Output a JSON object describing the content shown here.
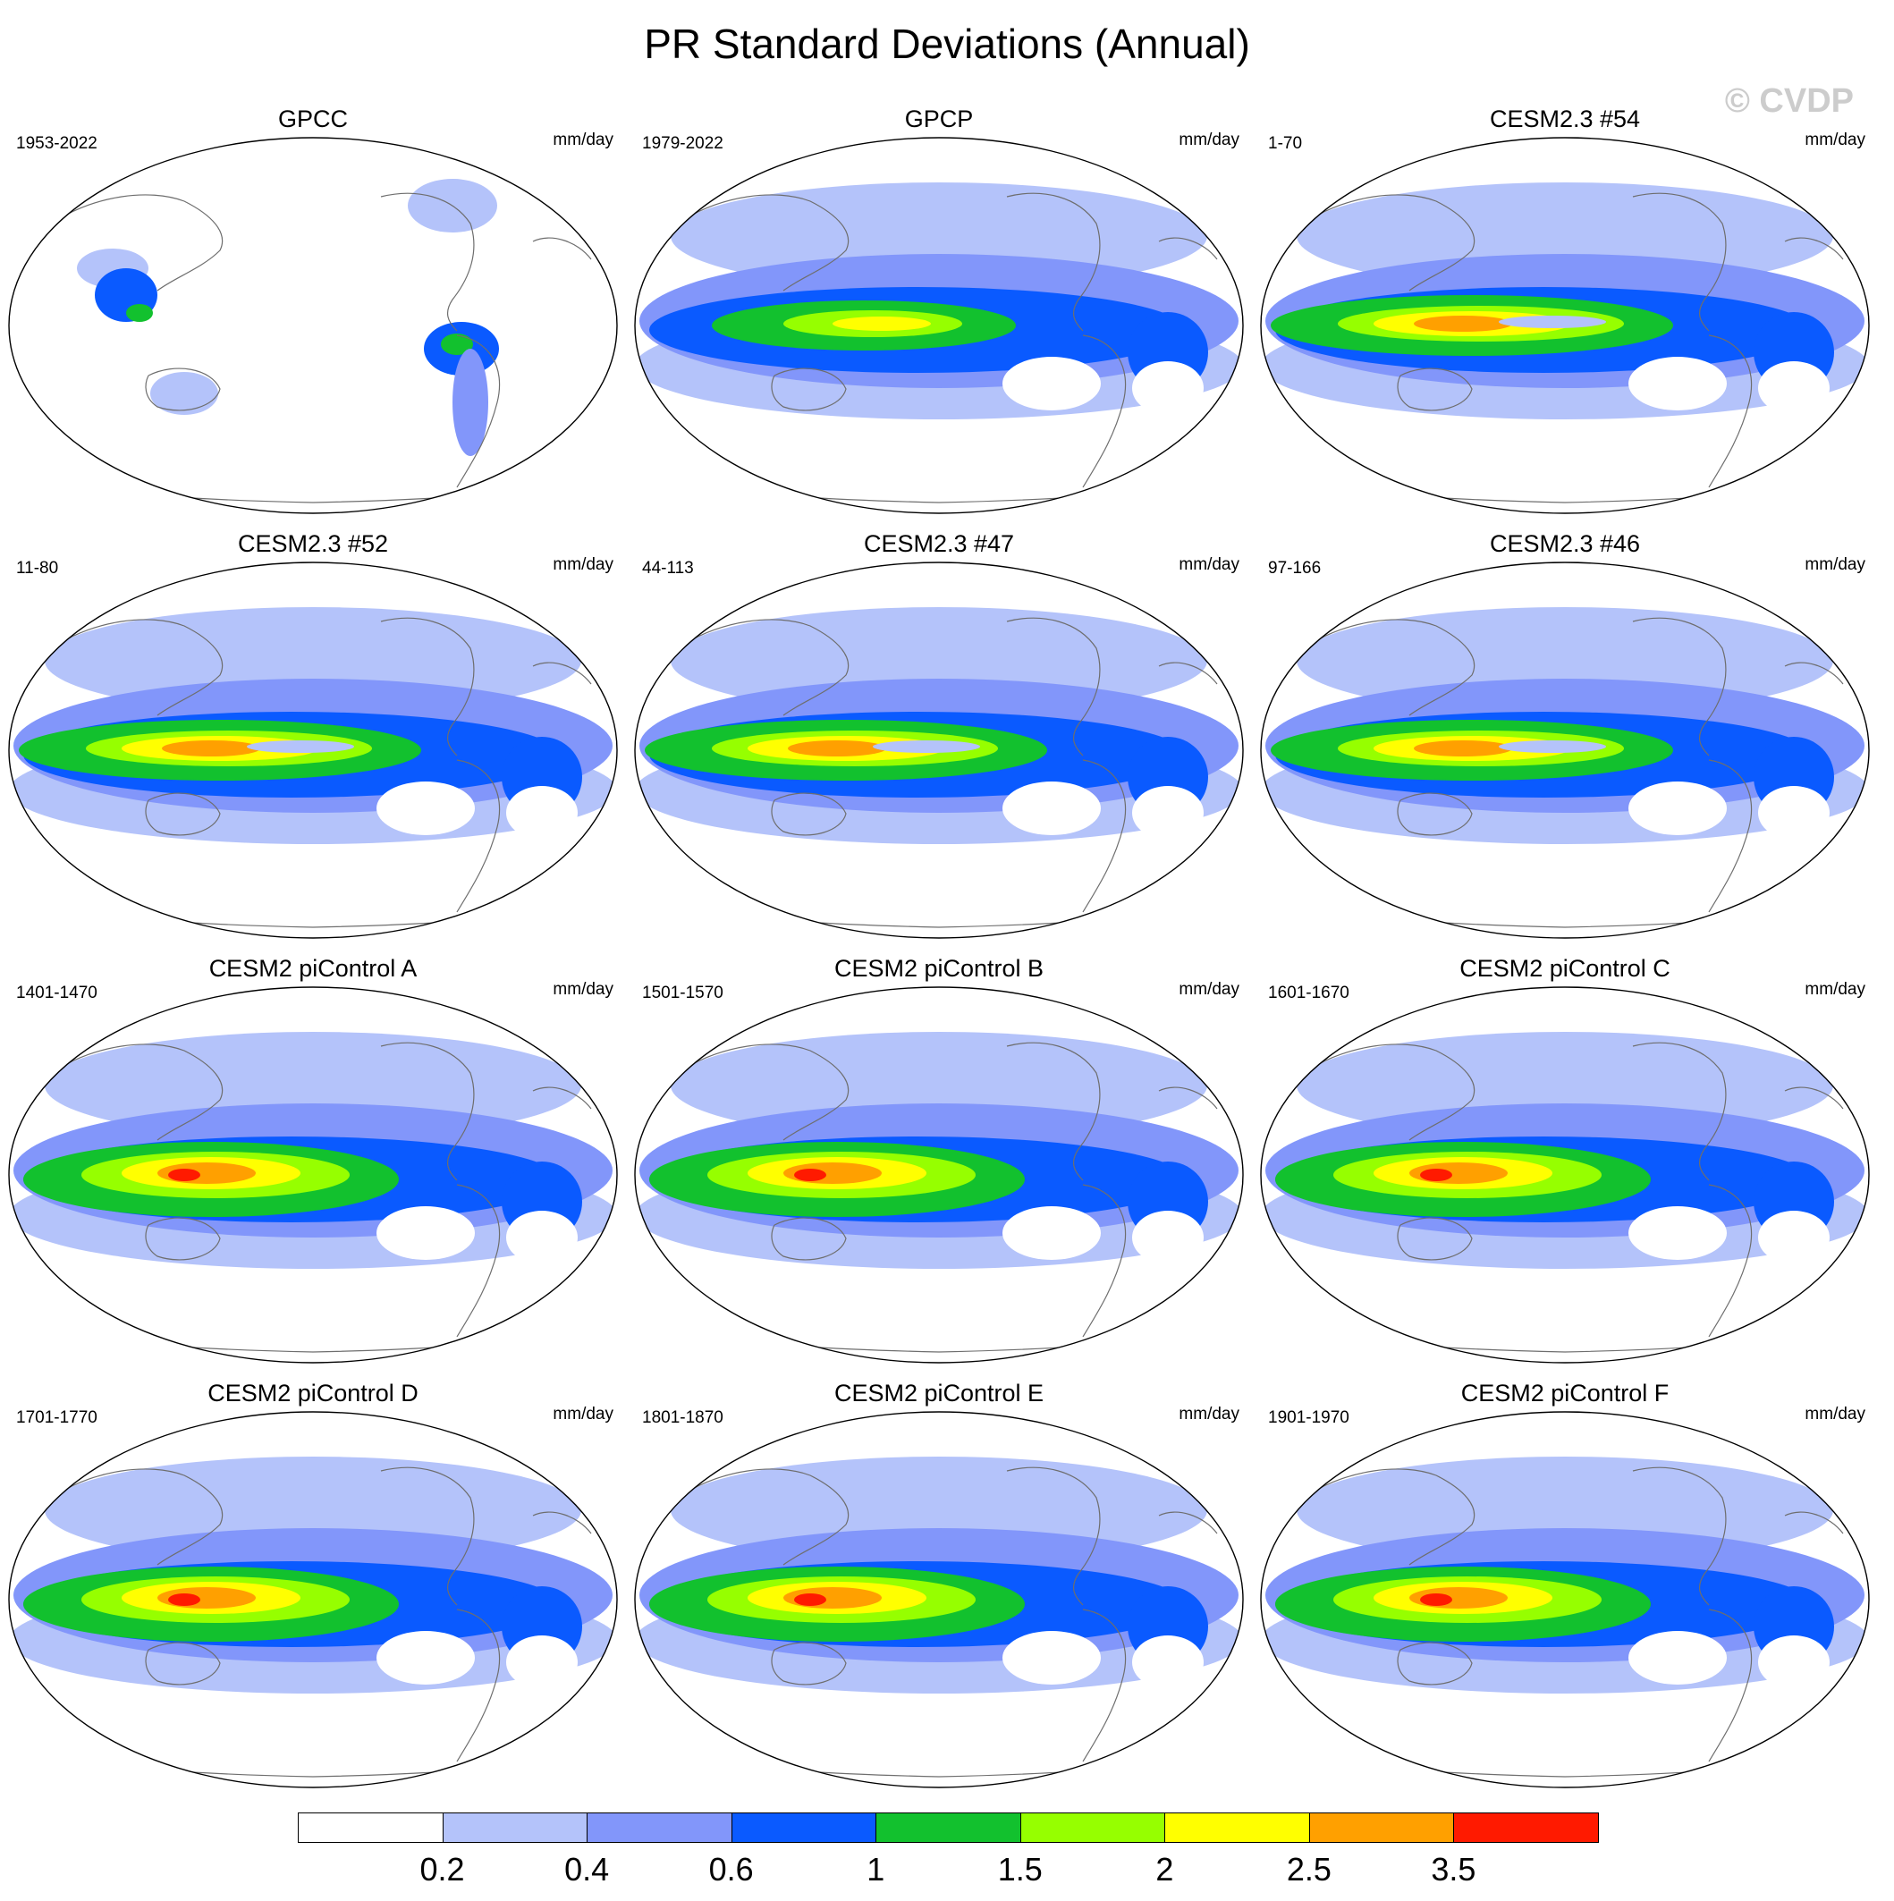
{
  "title": "PR Standard Deviations (Annual)",
  "watermark": "© CVDP",
  "units": "mm/day",
  "panels": [
    {
      "title": "GPCC",
      "period": "1953-2022",
      "kind": "obs_land"
    },
    {
      "title": "GPCP",
      "period": "1979-2022",
      "kind": "obs"
    },
    {
      "title": "CESM2.3 #54",
      "period": "1-70",
      "kind": "cesm23"
    },
    {
      "title": "CESM2.3 #52",
      "period": "11-80",
      "kind": "cesm23"
    },
    {
      "title": "CESM2.3 #47",
      "period": "44-113",
      "kind": "cesm23"
    },
    {
      "title": "CESM2.3 #46",
      "period": "97-166",
      "kind": "cesm23"
    },
    {
      "title": "CESM2 piControl A",
      "period": "1401-1470",
      "kind": "cesm2"
    },
    {
      "title": "CESM2 piControl B",
      "period": "1501-1570",
      "kind": "cesm2"
    },
    {
      "title": "CESM2 piControl C",
      "period": "1601-1670",
      "kind": "cesm2"
    },
    {
      "title": "CESM2 piControl D",
      "period": "1701-1770",
      "kind": "cesm2"
    },
    {
      "title": "CESM2 piControl E",
      "period": "1801-1870",
      "kind": "cesm2"
    },
    {
      "title": "CESM2 piControl F",
      "period": "1901-1970",
      "kind": "cesm2"
    }
  ],
  "colorbar": {
    "levels": [
      "0.2",
      "0.4",
      "0.6",
      "1",
      "1.5",
      "2",
      "2.5",
      "3.5"
    ],
    "colors": [
      "#ffffff",
      "#b4c3fa",
      "#8296fa",
      "#0a5aff",
      "#12c12e",
      "#96ff00",
      "#ffff00",
      "#ffa000",
      "#ff1a00"
    ]
  }
}
